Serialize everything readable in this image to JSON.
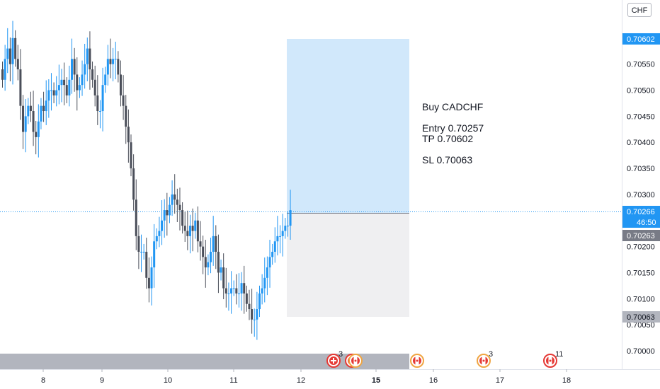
{
  "currency_label": "CHF",
  "annotation": {
    "title": "Buy CADCHF",
    "entry": "Entry 0.70257",
    "tp": "TP 0.70602",
    "sl": "SL 0.70063"
  },
  "price_labels": {
    "tp": "0.70602",
    "current": "0.70266",
    "countdown": "46:50",
    "sl_box": "0.70263",
    "sl": "0.70063"
  },
  "colors": {
    "up": "#2196f3",
    "down": "#4a4e59",
    "target_zone": "#d1e8fb",
    "stop_zone": "#efeff1",
    "current_line": "#2196f3",
    "tp_label": "#2196f3",
    "sl_label": "#b2b5be",
    "sl_box_label": "#787b86",
    "event_flag": "#e53935",
    "event_flag_alt": "#f0a542",
    "event_bar": "#b2b5be"
  },
  "events": [
    {
      "count": "3",
      "icon": "swiss-flag-icon"
    },
    {
      "count": "",
      "icon": "canada-flag-icon"
    },
    {
      "count": "",
      "icon": "canada-flag-icon"
    },
    {
      "count": "",
      "icon": "canada-flag-icon"
    },
    {
      "count": "3",
      "icon": "canada-flag-icon"
    },
    {
      "count": "11",
      "icon": "canada-flag-icon"
    }
  ],
  "chart_data": {
    "type": "candlestick",
    "symbol": "CADCHF",
    "ylim": [
      0.7,
      0.7065
    ],
    "y_ticks": [
      "0.70000",
      "0.70050",
      "0.70100",
      "0.70150",
      "0.70200",
      "0.70300",
      "0.70350",
      "0.70400",
      "0.70450",
      "0.70500",
      "0.70550",
      "0.70600"
    ],
    "x_ticks": [
      "8",
      "9",
      "10",
      "11",
      "12",
      "15",
      "16",
      "17",
      "18"
    ],
    "position": {
      "side": "long",
      "entry": 0.70257,
      "take_profit": 0.70602,
      "stop_loss": 0.70063
    },
    "current_price": 0.70266,
    "closes": [
      0.7052,
      0.7056,
      0.7058,
      0.7055,
      0.706,
      0.7056,
      0.7054,
      0.7047,
      0.7042,
      0.7045,
      0.7047,
      0.7046,
      0.7042,
      0.7041,
      0.7044,
      0.7047,
      0.7046,
      0.7048,
      0.705,
      0.705,
      0.7049,
      0.705,
      0.7051,
      0.7052,
      0.7051,
      0.7049,
      0.7052,
      0.7056,
      0.7053,
      0.705,
      0.7051,
      0.7053,
      0.7055,
      0.7058,
      0.7054,
      0.7052,
      0.7049,
      0.7046,
      0.7046,
      0.7051,
      0.7053,
      0.7056,
      0.7055,
      0.7056,
      0.7056,
      0.7053,
      0.7049,
      0.7047,
      0.7043,
      0.704,
      0.7035,
      0.7029,
      0.7022,
      0.7019,
      0.7019,
      0.7019,
      0.7014,
      0.7012,
      0.7016,
      0.7021,
      0.7022,
      0.7023,
      0.7025,
      0.7027,
      0.7026,
      0.7028,
      0.703,
      0.7029,
      0.7028,
      0.7027,
      0.7024,
      0.7023,
      0.7022,
      0.7024,
      0.7023,
      0.7025,
      0.7021,
      0.702,
      0.7018,
      0.7016,
      0.7017,
      0.7019,
      0.7022,
      0.7019,
      0.7015,
      0.7016,
      0.7012,
      0.7011,
      0.7011,
      0.7012,
      0.7012,
      0.7011,
      0.7011,
      0.7013,
      0.7011,
      0.7009,
      0.7008,
      0.7006,
      0.7006,
      0.7008,
      0.7011,
      0.7012,
      0.7014,
      0.7016,
      0.7018,
      0.7019,
      0.7021,
      0.7022,
      0.7022,
      0.7023,
      0.7024,
      0.7024,
      0.7027
    ]
  }
}
